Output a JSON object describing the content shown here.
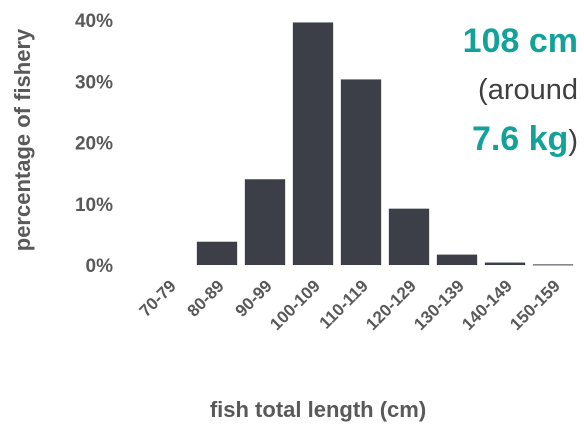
{
  "colors": {
    "bar": "#3c3f48",
    "accent": "#12a29a",
    "text": "#404040",
    "axis_text": "#595959"
  },
  "annotation": {
    "line1": "108 cm",
    "line2_open": "(around",
    "line3_value": "7.6 kg",
    "line3_close": ")"
  },
  "chart_data": {
    "type": "bar",
    "xlabel": "fish total length (cm)",
    "ylabel": "percentage of fishery",
    "categories": [
      "70-79",
      "80-89",
      "90-99",
      "100-109",
      "110-119",
      "120-129",
      "130-139",
      "140-149",
      "150-159"
    ],
    "values": [
      0,
      3.8,
      14.0,
      39.6,
      30.3,
      9.2,
      1.7,
      0.4,
      0.1
    ],
    "ylim": [
      0,
      40
    ],
    "yticks": [
      "0%",
      "10%",
      "20%",
      "30%",
      "40%"
    ],
    "grid": false,
    "legend": "none"
  }
}
